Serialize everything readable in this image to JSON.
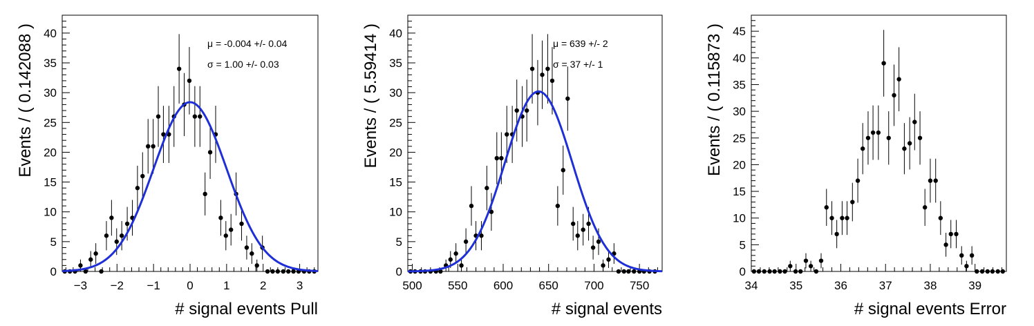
{
  "chart_data": [
    {
      "type": "scatter",
      "xlabel": "# signal events Pull",
      "ylabel": "Events / ( 0.142088 )",
      "xlim": [
        -3.5,
        3.5
      ],
      "ylim": [
        0,
        43
      ],
      "xticks": [
        -3,
        -2,
        -1,
        0,
        1,
        2,
        3
      ],
      "yticks": [
        0,
        5,
        10,
        15,
        20,
        25,
        30,
        35,
        40
      ],
      "grid": false,
      "stats": [
        "μ = -0.004 +/- 0.04",
        "σ = 1.00 +/- 0.03"
      ],
      "marker_color": "#000000",
      "fit_color": "#1f2fd6",
      "fit": {
        "model": "gaussian",
        "mean": 0.0,
        "sigma": 1.0,
        "amplitude": 28.4
      },
      "series": [
        {
          "x": [
            -3.43,
            -3.29,
            -3.15,
            -3.0,
            -2.86,
            -2.72,
            -2.58,
            -2.43,
            -2.29,
            -2.15,
            -2.01,
            -1.87,
            -1.72,
            -1.58,
            -1.44,
            -1.3,
            -1.15,
            -1.01,
            -0.87,
            -0.73,
            -0.58,
            -0.44,
            -0.3,
            -0.16,
            -0.02,
            0.13,
            0.27,
            0.41,
            0.55,
            0.7,
            0.84,
            0.98,
            1.12,
            1.26,
            1.41,
            1.55,
            1.69,
            1.83,
            1.98,
            2.12,
            2.26,
            2.4,
            2.55,
            2.69,
            2.83,
            2.97,
            3.12,
            3.26,
            3.4
          ],
          "y": [
            0,
            0,
            0,
            1,
            0,
            2,
            3,
            0,
            6,
            9,
            5,
            6,
            8,
            9,
            14,
            16,
            21,
            21,
            26,
            23,
            23,
            26,
            34,
            28,
            32,
            26,
            26,
            13,
            20,
            23,
            9,
            6,
            7,
            13,
            8,
            4,
            3,
            1,
            4,
            0,
            0,
            0,
            0,
            0,
            0,
            0,
            0,
            0,
            0
          ]
        }
      ]
    },
    {
      "type": "scatter",
      "xlabel": "# signal events",
      "ylabel": "Events / ( 5.59414 )",
      "xlim": [
        495,
        775
      ],
      "ylim": [
        0,
        43
      ],
      "xticks": [
        500,
        550,
        600,
        650,
        700,
        750
      ],
      "yticks": [
        0,
        5,
        10,
        15,
        20,
        25,
        30,
        35,
        40
      ],
      "grid": false,
      "stats": [
        "μ = 639 +/- 2",
        "σ = 37 +/- 1"
      ],
      "marker_color": "#000000",
      "fit_color": "#1f2fd6",
      "fit": {
        "model": "gaussian",
        "mean": 639,
        "sigma": 37,
        "amplitude": 30.2
      },
      "series": [
        {
          "x": [
            498,
            503,
            509,
            514,
            520,
            526,
            531,
            537,
            542,
            548,
            554,
            559,
            565,
            570,
            576,
            582,
            587,
            593,
            598,
            604,
            610,
            615,
            621,
            626,
            632,
            638,
            643,
            649,
            654,
            660,
            666,
            671,
            677,
            682,
            688,
            694,
            699,
            705,
            710,
            716,
            722,
            727,
            733,
            738,
            744,
            750,
            755,
            761,
            767
          ],
          "y": [
            0,
            0,
            0,
            0,
            0,
            0,
            0,
            1,
            2,
            3,
            1,
            5,
            11,
            6,
            6,
            14,
            10,
            19,
            19,
            23,
            23,
            27,
            26,
            27,
            34,
            30,
            33,
            34,
            32,
            11,
            17,
            29,
            8,
            6,
            7,
            8,
            4,
            5,
            1,
            2,
            3,
            0,
            0,
            0,
            0,
            0,
            0,
            0,
            0
          ]
        }
      ]
    },
    {
      "type": "scatter",
      "xlabel": "# signal events Error",
      "ylabel": "Events / ( 0.115873 )",
      "xlim": [
        34,
        39.7
      ],
      "ylim": [
        0,
        48
      ],
      "xticks": [
        34,
        35,
        36,
        37,
        38,
        39
      ],
      "yticks": [
        0,
        5,
        10,
        15,
        20,
        25,
        30,
        35,
        40,
        45
      ],
      "grid": false,
      "marker_color": "#000000",
      "series": [
        {
          "x": [
            34.06,
            34.17,
            34.29,
            34.41,
            34.52,
            34.64,
            34.75,
            34.87,
            34.99,
            35.1,
            35.22,
            35.33,
            35.45,
            35.56,
            35.68,
            35.8,
            35.91,
            36.03,
            36.14,
            36.26,
            36.38,
            36.49,
            36.61,
            36.72,
            36.84,
            36.96,
            37.07,
            37.19,
            37.3,
            37.42,
            37.54,
            37.65,
            37.77,
            37.88,
            38.0,
            38.12,
            38.23,
            38.35,
            38.46,
            38.58,
            38.7,
            38.81,
            38.93,
            39.04,
            39.16,
            39.28,
            39.39,
            39.51,
            39.62
          ],
          "y": [
            0,
            0,
            0,
            0,
            0,
            0,
            0,
            1,
            0,
            0,
            2,
            1,
            0,
            2,
            12,
            10,
            7,
            10,
            10,
            13,
            17,
            23,
            25,
            26,
            26,
            39,
            25,
            33,
            36,
            23,
            24,
            28,
            25,
            12,
            17,
            17,
            10,
            5,
            7,
            7,
            3,
            1,
            3,
            0,
            0,
            0,
            0,
            0,
            0
          ]
        }
      ]
    }
  ]
}
